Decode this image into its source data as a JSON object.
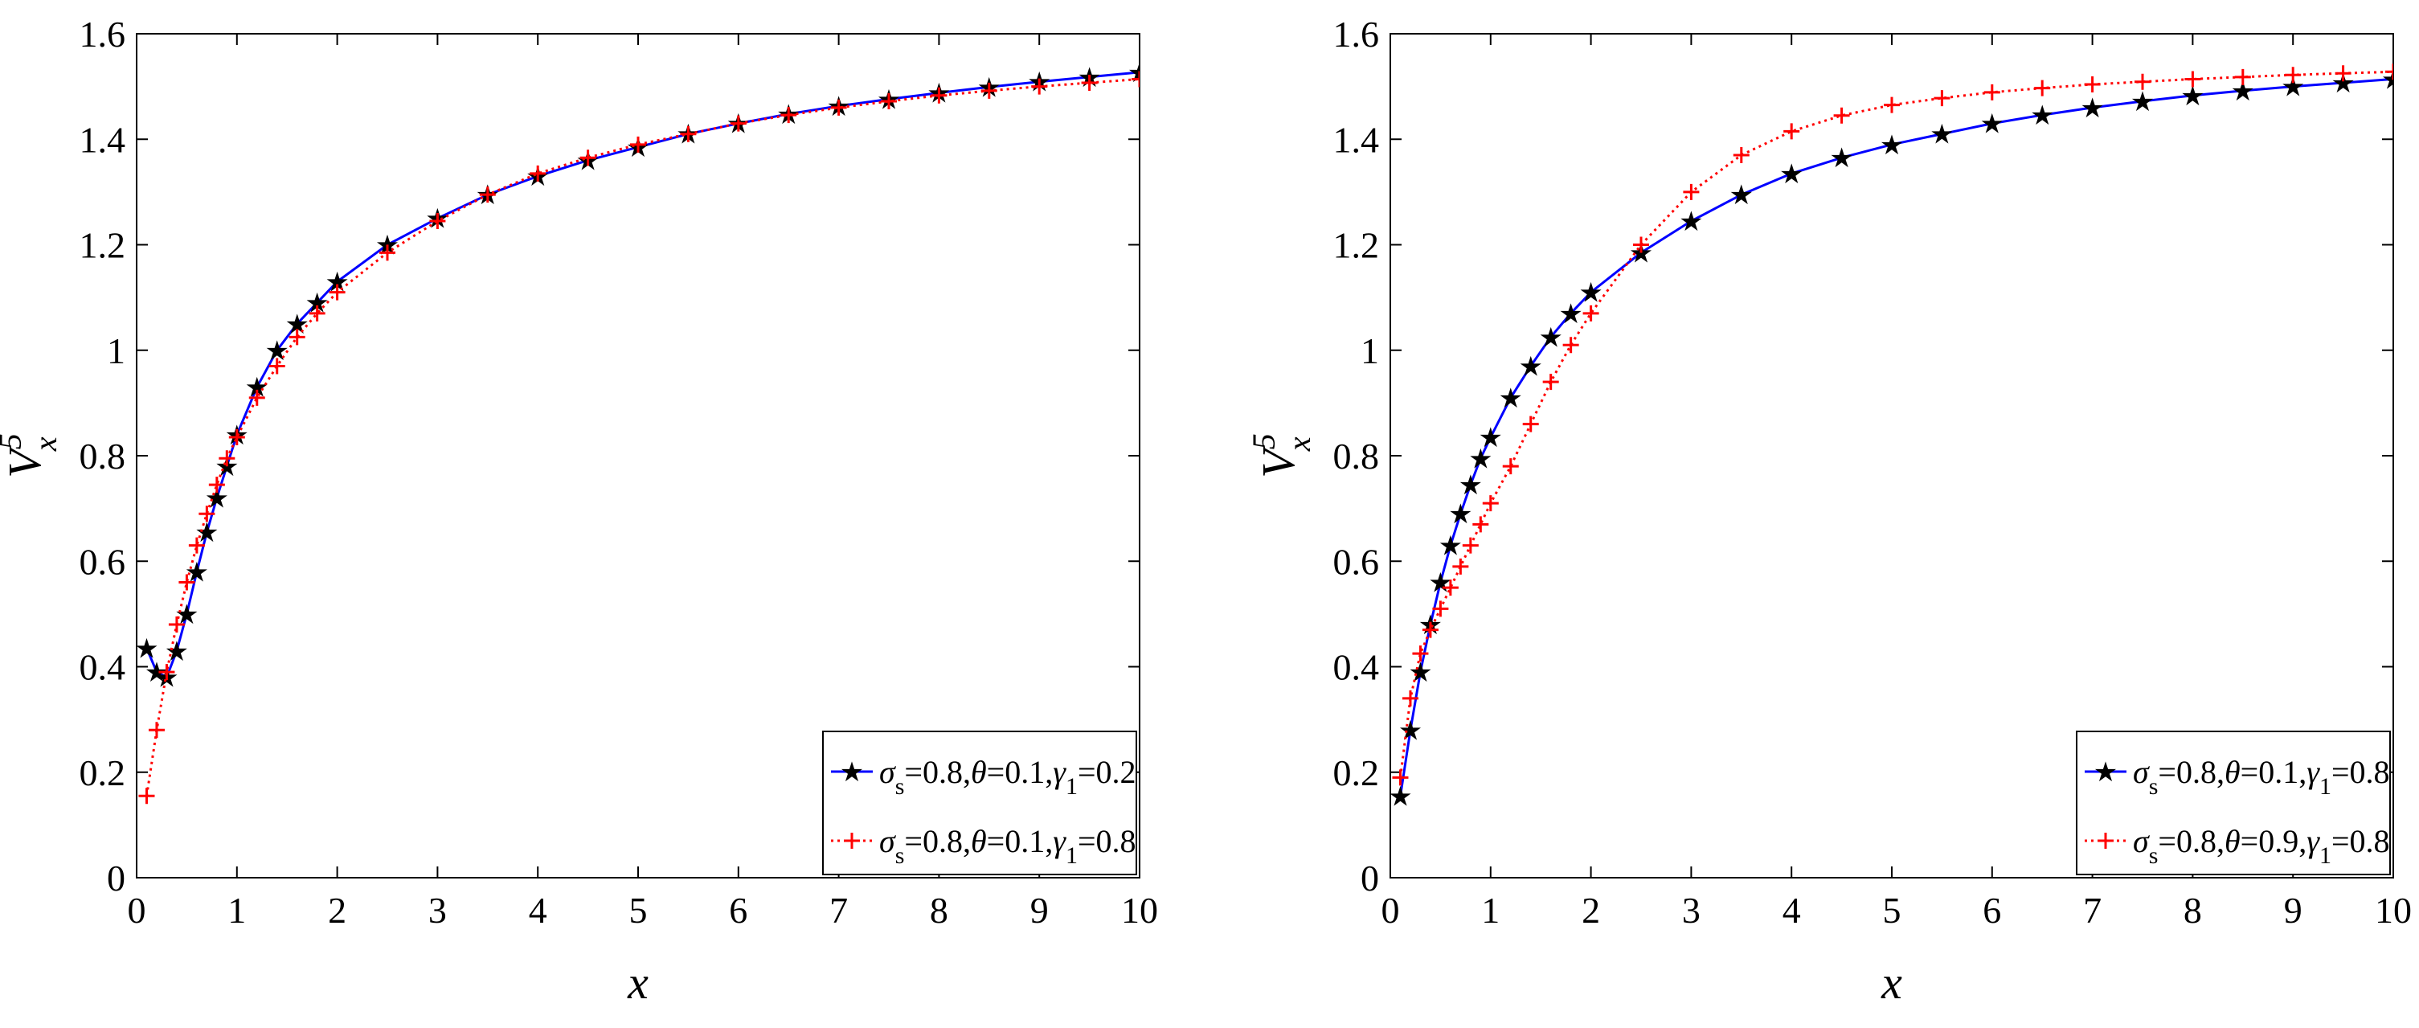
{
  "chart_data": [
    {
      "type": "line",
      "title": "",
      "xlabel": "x",
      "ylabel": "V",
      "ylabel_sup": "5",
      "ylabel_sub": "x",
      "xlim": [
        0,
        10
      ],
      "ylim": [
        0,
        1.6
      ],
      "xticks": [
        "0",
        "1",
        "2",
        "3",
        "4",
        "5",
        "6",
        "7",
        "8",
        "9",
        "10"
      ],
      "yticks": [
        "0",
        "0.2",
        "0.4",
        "0.6",
        "0.8",
        "1",
        "1.2",
        "1.4",
        "1.6"
      ],
      "legend_position": "bottom-right",
      "series": [
        {
          "name": "σs=0.8,θ=0.1,γ1=0.2",
          "legend": {
            "sigma": "σ",
            "sigma_sub": "s",
            "text1": "=0.8,",
            "theta": "θ",
            "text2": "=0.1,",
            "gamma": "γ",
            "gamma_sub": "1",
            "text3": "=0.2"
          },
          "color": "#0000ff",
          "line_style": "solid",
          "marker": "star",
          "x": [
            0.1,
            0.2,
            0.3,
            0.4,
            0.5,
            0.6,
            0.7,
            0.8,
            0.9,
            1.0,
            1.2,
            1.4,
            1.6,
            1.8,
            2.0,
            2.5,
            3.0,
            3.5,
            4.0,
            4.5,
            5.0,
            5.5,
            6.0,
            6.5,
            7.0,
            7.5,
            8.0,
            8.5,
            9.0,
            9.5,
            10.0
          ],
          "y": [
            0.435,
            0.39,
            0.38,
            0.43,
            0.5,
            0.58,
            0.655,
            0.72,
            0.78,
            0.84,
            0.93,
            1.0,
            1.05,
            1.09,
            1.13,
            1.2,
            1.25,
            1.295,
            1.33,
            1.36,
            1.385,
            1.41,
            1.43,
            1.448,
            1.463,
            1.476,
            1.488,
            1.499,
            1.509,
            1.518,
            1.527
          ]
        },
        {
          "name": "σs=0.8,θ=0.1,γ1=0.8",
          "legend": {
            "sigma": "σ",
            "sigma_sub": "s",
            "text1": "=0.8,",
            "theta": "θ",
            "text2": "=0.1,",
            "gamma": "γ",
            "gamma_sub": "1",
            "text3": "=0.8"
          },
          "color": "#ff0000",
          "line_style": "dotted",
          "marker": "plus",
          "x": [
            0.1,
            0.2,
            0.3,
            0.4,
            0.5,
            0.6,
            0.7,
            0.8,
            0.9,
            1.0,
            1.2,
            1.4,
            1.6,
            1.8,
            2.0,
            2.5,
            3.0,
            3.5,
            4.0,
            4.5,
            5.0,
            5.5,
            6.0,
            6.5,
            7.0,
            7.5,
            8.0,
            8.5,
            9.0,
            9.5,
            10.0
          ],
          "y": [
            0.155,
            0.28,
            0.39,
            0.48,
            0.56,
            0.63,
            0.69,
            0.745,
            0.795,
            0.835,
            0.91,
            0.97,
            1.025,
            1.07,
            1.11,
            1.185,
            1.245,
            1.295,
            1.335,
            1.365,
            1.39,
            1.41,
            1.43,
            1.446,
            1.46,
            1.472,
            1.483,
            1.492,
            1.5,
            1.507,
            1.514
          ]
        }
      ]
    },
    {
      "type": "line",
      "title": "",
      "xlabel": "x",
      "ylabel": "V",
      "ylabel_sup": "5",
      "ylabel_sub": "x",
      "xlim": [
        0,
        10
      ],
      "ylim": [
        0,
        1.6
      ],
      "xticks": [
        "0",
        "1",
        "2",
        "3",
        "4",
        "5",
        "6",
        "7",
        "8",
        "9",
        "10"
      ],
      "yticks": [
        "0",
        "0.2",
        "0.4",
        "0.6",
        "0.8",
        "1",
        "1.2",
        "1.4",
        "1.6"
      ],
      "legend_position": "bottom-right",
      "series": [
        {
          "name": "σs=0.8,θ=0.1,γ1=0.8",
          "legend": {
            "sigma": "σ",
            "sigma_sub": "s",
            "text1": "=0.8,",
            "theta": "θ",
            "text2": "=0.1,",
            "gamma": "γ",
            "gamma_sub": "1",
            "text3": "=0.8"
          },
          "color": "#0000ff",
          "line_style": "solid",
          "marker": "star",
          "x": [
            0.1,
            0.2,
            0.3,
            0.4,
            0.5,
            0.6,
            0.7,
            0.8,
            0.9,
            1.0,
            1.2,
            1.4,
            1.6,
            1.8,
            2.0,
            2.5,
            3.0,
            3.5,
            4.0,
            4.5,
            5.0,
            5.5,
            6.0,
            6.5,
            7.0,
            7.5,
            8.0,
            8.5,
            9.0,
            9.5,
            10.0
          ],
          "y": [
            0.155,
            0.28,
            0.39,
            0.48,
            0.56,
            0.63,
            0.69,
            0.745,
            0.795,
            0.835,
            0.91,
            0.97,
            1.025,
            1.07,
            1.11,
            1.185,
            1.245,
            1.295,
            1.335,
            1.365,
            1.39,
            1.41,
            1.43,
            1.446,
            1.46,
            1.472,
            1.483,
            1.492,
            1.5,
            1.507,
            1.514
          ]
        },
        {
          "name": "σs=0.8,θ=0.9,γ1=0.8",
          "legend": {
            "sigma": "σ",
            "sigma_sub": "s",
            "text1": "=0.8,",
            "theta": "θ",
            "text2": "=0.9,",
            "gamma": "γ",
            "gamma_sub": "1",
            "text3": "=0.8"
          },
          "color": "#ff0000",
          "line_style": "dotted",
          "marker": "plus",
          "x": [
            0.1,
            0.2,
            0.3,
            0.4,
            0.5,
            0.6,
            0.7,
            0.8,
            0.9,
            1.0,
            1.2,
            1.4,
            1.6,
            1.8,
            2.0,
            2.5,
            3.0,
            3.5,
            4.0,
            4.5,
            5.0,
            5.5,
            6.0,
            6.5,
            7.0,
            7.5,
            8.0,
            8.5,
            9.0,
            9.5,
            10.0
          ],
          "y": [
            0.19,
            0.34,
            0.425,
            0.47,
            0.51,
            0.55,
            0.59,
            0.63,
            0.67,
            0.71,
            0.78,
            0.86,
            0.94,
            1.01,
            1.07,
            1.2,
            1.3,
            1.37,
            1.415,
            1.445,
            1.465,
            1.478,
            1.489,
            1.497,
            1.504,
            1.509,
            1.514,
            1.518,
            1.522,
            1.525,
            1.528
          ]
        }
      ]
    }
  ]
}
